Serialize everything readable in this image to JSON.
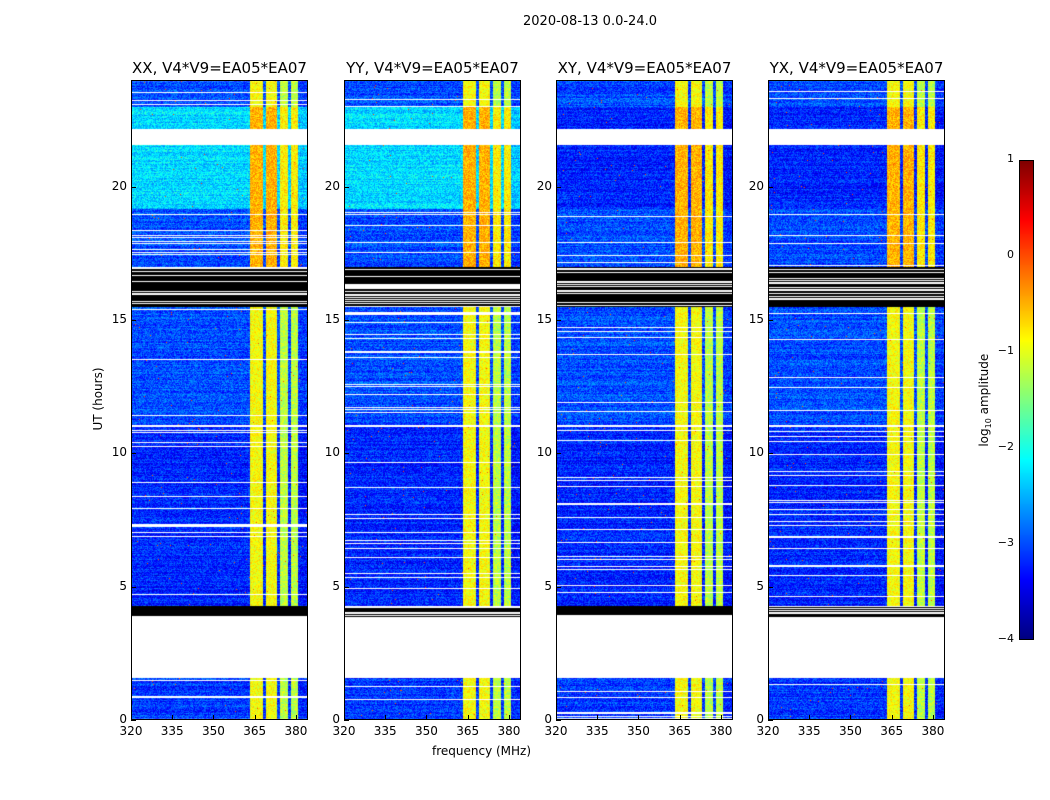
{
  "chart_data": {
    "type": "heatmap",
    "title": "2020-08-13 0.0-24.0",
    "xlabel": "frequency (MHz)",
    "ylabel": "UT (hours)",
    "xlim": [
      320,
      384.4
    ],
    "ylim": [
      0,
      24
    ],
    "xticks": [
      320,
      335,
      350,
      365,
      380
    ],
    "yticks": [
      0,
      5,
      10,
      15,
      20
    ],
    "colormap": "jet",
    "colorbar": {
      "label_prefix": "log",
      "label_sub": "10",
      "label_suffix": " amplitude",
      "range": [
        -4,
        1
      ],
      "ticks": [
        1,
        0,
        -1,
        -2,
        -3,
        -4
      ]
    },
    "panels": [
      {
        "title": "XX, V4*V9=EA05*EA07",
        "quiet_level": -2.3
      },
      {
        "title": "YY, V4*V9=EA05*EA07",
        "quiet_level": -2.3
      },
      {
        "title": "XY, V4*V9=EA05*EA07",
        "quiet_level": -3.2
      },
      {
        "title": "YX, V4*V9=EA05*EA07",
        "quiet_level": -3.2
      }
    ],
    "time_segments": [
      {
        "start": 0.0,
        "end": 1.6,
        "state": "data",
        "level": -3.1
      },
      {
        "start": 1.6,
        "end": 3.9,
        "state": "flagged"
      },
      {
        "start": 3.9,
        "end": 4.3,
        "state": "zero"
      },
      {
        "start": 4.3,
        "end": 11.0,
        "state": "data",
        "level": -3.2
      },
      {
        "start": 11.0,
        "end": 11.1,
        "state": "flagged"
      },
      {
        "start": 11.1,
        "end": 15.5,
        "state": "data",
        "level": -3.0
      },
      {
        "start": 15.5,
        "end": 17.0,
        "state": "zero"
      },
      {
        "start": 17.0,
        "end": 19.2,
        "state": "data",
        "level": -3.0
      },
      {
        "start": 19.2,
        "end": 21.6,
        "state": "quiet"
      },
      {
        "start": 21.6,
        "end": 22.2,
        "state": "flagged"
      },
      {
        "start": 22.2,
        "end": 23.0,
        "state": "quiet"
      },
      {
        "start": 23.0,
        "end": 24.0,
        "state": "data",
        "level": -3.0
      }
    ],
    "rfi_bands_mhz": [
      [
        363,
        368,
        -0.9
      ],
      [
        369,
        373,
        -0.9
      ],
      [
        374,
        377,
        -1.2
      ],
      [
        378,
        380.5,
        -1.2
      ]
    ]
  }
}
